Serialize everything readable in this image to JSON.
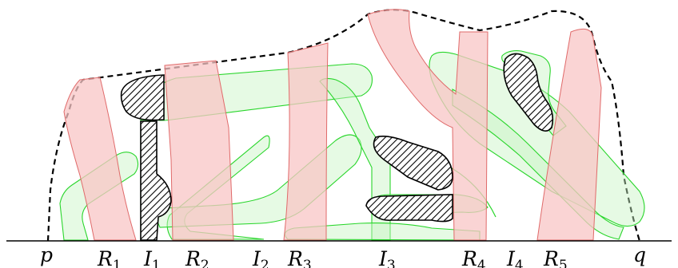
{
  "figure": {
    "baseline_endpoints": [
      {
        "id": "p",
        "label": "p"
      },
      {
        "id": "q",
        "label": "q"
      }
    ],
    "axis_labels": [
      {
        "base": "R",
        "sub": "1"
      },
      {
        "base": "I",
        "sub": "1"
      },
      {
        "base": "R",
        "sub": "2"
      },
      {
        "base": "I",
        "sub": "2"
      },
      {
        "base": "R",
        "sub": "3"
      },
      {
        "base": "I",
        "sub": "3"
      },
      {
        "base": "R",
        "sub": "4"
      },
      {
        "base": "I",
        "sub": "4"
      },
      {
        "base": "R",
        "sub": "5"
      }
    ],
    "colors": {
      "red_region_fill": "#f8c6c6",
      "red_region_stroke": "#e06a6a",
      "green_region_fill": "#c8f5c4",
      "green_region_stroke": "#29d62b",
      "hatched_region": "#000000",
      "outline": "#000000"
    }
  }
}
